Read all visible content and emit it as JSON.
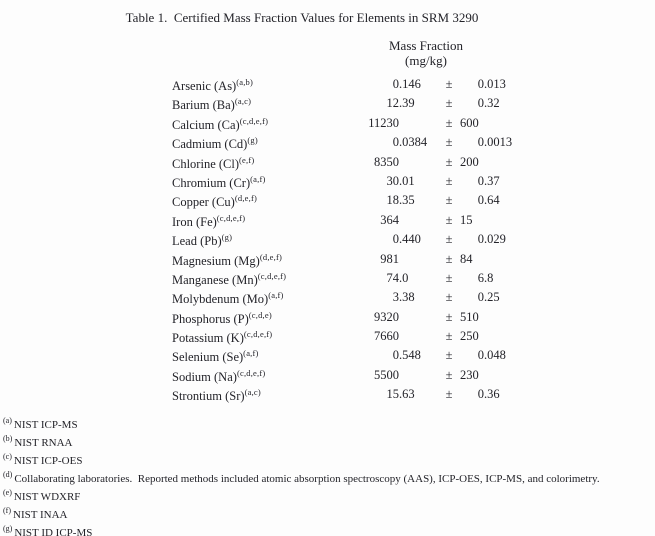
{
  "page": {
    "background": "#fdfdfd",
    "text_color": "#232329"
  },
  "title": "Table 1.  Certified Mass Fraction Values for Elements in SRM 3290",
  "table": {
    "column_header": {
      "line1": "Mass Fraction",
      "line2": "(mg/kg)"
    },
    "plus_minus": "±",
    "rows": [
      {
        "element": "Arsenic (As)",
        "methods": "(a,b)",
        "value": "0.146",
        "uncertainty": "0.013"
      },
      {
        "element": "Barium (Ba)",
        "methods": "(a,c)",
        "value": "12.39",
        "uncertainty": "0.32"
      },
      {
        "element": "Calcium (Ca)",
        "methods": "(c,d,e,f)",
        "value": "11230",
        "uncertainty": "600"
      },
      {
        "element": "Cadmium (Cd)",
        "methods": "(g)",
        "value": "0.0384",
        "uncertainty": "0.0013"
      },
      {
        "element": "Chlorine (Cl)",
        "methods": "(e,f)",
        "value": "8350",
        "uncertainty": "200"
      },
      {
        "element": "Chromium (Cr)",
        "methods": "(a,f)",
        "value": "30.01",
        "uncertainty": "0.37"
      },
      {
        "element": "Copper (Cu)",
        "methods": "(d,e,f)",
        "value": "18.35",
        "uncertainty": "0.64"
      },
      {
        "element": "Iron (Fe)",
        "methods": "(c,d,e,f)",
        "value": "364",
        "uncertainty": "15"
      },
      {
        "element": "Lead (Pb)",
        "methods": "(g)",
        "value": "0.440",
        "uncertainty": "0.029"
      },
      {
        "element": "Magnesium (Mg)",
        "methods": "(d,e,f)",
        "value": "981",
        "uncertainty": "84"
      },
      {
        "element": "Manganese (Mn)",
        "methods": "(c,d,e,f)",
        "value": "74.0",
        "uncertainty": "6.8"
      },
      {
        "element": "Molybdenum (Mo)",
        "methods": "(a,f)",
        "value": "3.38",
        "uncertainty": "0.25"
      },
      {
        "element": "Phosphorus (P)",
        "methods": "(c,d,e)",
        "value": "9320",
        "uncertainty": "510"
      },
      {
        "element": "Potassium (K)",
        "methods": "(c,d,e,f)",
        "value": "7660",
        "uncertainty": "250"
      },
      {
        "element": "Selenium (Se)",
        "methods": "(a,f)",
        "value": "0.548",
        "uncertainty": "0.048"
      },
      {
        "element": "Sodium (Na)",
        "methods": "(c,d,e,f)",
        "value": "5500",
        "uncertainty": "230"
      },
      {
        "element": "Strontium (Sr)",
        "methods": "(a,c)",
        "value": "15.63",
        "uncertainty": "0.36"
      }
    ]
  },
  "footnotes": [
    {
      "marker": "(a)",
      "text": "NIST ICP-MS",
      "justify": false
    },
    {
      "marker": "(b)",
      "text": "NIST RNAA",
      "justify": false
    },
    {
      "marker": "(c)",
      "text": "NIST ICP-OES",
      "justify": false
    },
    {
      "marker": "(d)",
      "text": "Collaborating laboratories.  Reported methods included atomic absorption spectroscopy (AAS), ICP-OES, ICP-MS, and colorimetry.",
      "justify": true
    },
    {
      "marker": "(e)",
      "text": "NIST WDXRF",
      "justify": false
    },
    {
      "marker": "(f)",
      "text": "NIST INAA",
      "justify": false
    },
    {
      "marker": "(g)",
      "text": "NIST ID ICP-MS",
      "justify": false
    }
  ]
}
